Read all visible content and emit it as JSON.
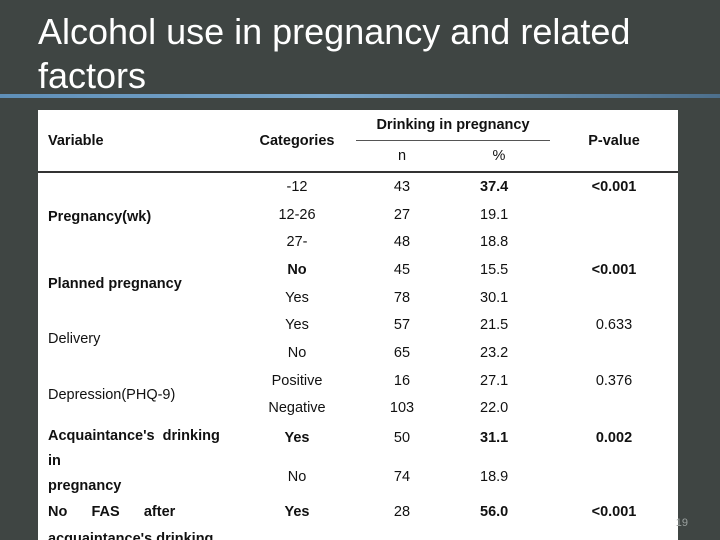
{
  "slide": {
    "title": "Alcohol use in pregnancy and related factors",
    "page_number": "19"
  },
  "table": {
    "headers": {
      "variable": "Variable",
      "categories": "Categories",
      "group": "Drinking in pregnancy",
      "n": "n",
      "pct": "%",
      "pvalue": "P-value"
    },
    "groups": [
      {
        "variable": "Pregnancy(wk)",
        "bold_variable": true,
        "pvalue": "<0.001",
        "rows": [
          {
            "category": "-12",
            "n": "43",
            "pct": "37.4",
            "bold": true
          },
          {
            "category": "12-26",
            "n": "27",
            "pct": "19.1",
            "bold": false
          },
          {
            "category": "27-",
            "n": "48",
            "pct": "18.8",
            "bold": false
          }
        ]
      },
      {
        "variable": "Planned pregnancy",
        "bold_variable": true,
        "pvalue": "<0.001",
        "rows": [
          {
            "category": "No",
            "n": "45",
            "pct": "15.5",
            "bold": true
          },
          {
            "category": "Yes",
            "n": "78",
            "pct": "30.1",
            "bold": false
          }
        ]
      },
      {
        "variable": "Delivery",
        "bold_variable": false,
        "pvalue": "0.633",
        "rows": [
          {
            "category": "Yes",
            "n": "57",
            "pct": "21.5",
            "bold": false
          },
          {
            "category": "No",
            "n": "65",
            "pct": "23.2",
            "bold": false
          }
        ]
      },
      {
        "variable": "Depression(PHQ-9)",
        "bold_variable": false,
        "pvalue": "0.376",
        "rows": [
          {
            "category": "Positive",
            "n": "16",
            "pct": "27.1",
            "bold": false
          },
          {
            "category": "Negative",
            "n": "103",
            "pct": "22.0",
            "bold": false
          }
        ]
      },
      {
        "variable_lines": [
          "Acquaintance's  drinking",
          "in",
          "pregnancy"
        ],
        "bold_variable": true,
        "pvalue": "0.002",
        "rows": [
          {
            "category": "Yes",
            "n": "50",
            "pct": "31.1",
            "bold": true
          },
          {
            "category": "No",
            "n": "74",
            "pct": "18.9",
            "bold": false
          }
        ]
      },
      {
        "variable_lines": [
          "No      FAS      after",
          "acquaintance's  drinking"
        ],
        "bold_variable": true,
        "pvalue": "<0.001",
        "rows": [
          {
            "category": "Yes",
            "n": "28",
            "pct": "56.0",
            "bold": true
          }
        ]
      }
    ]
  }
}
